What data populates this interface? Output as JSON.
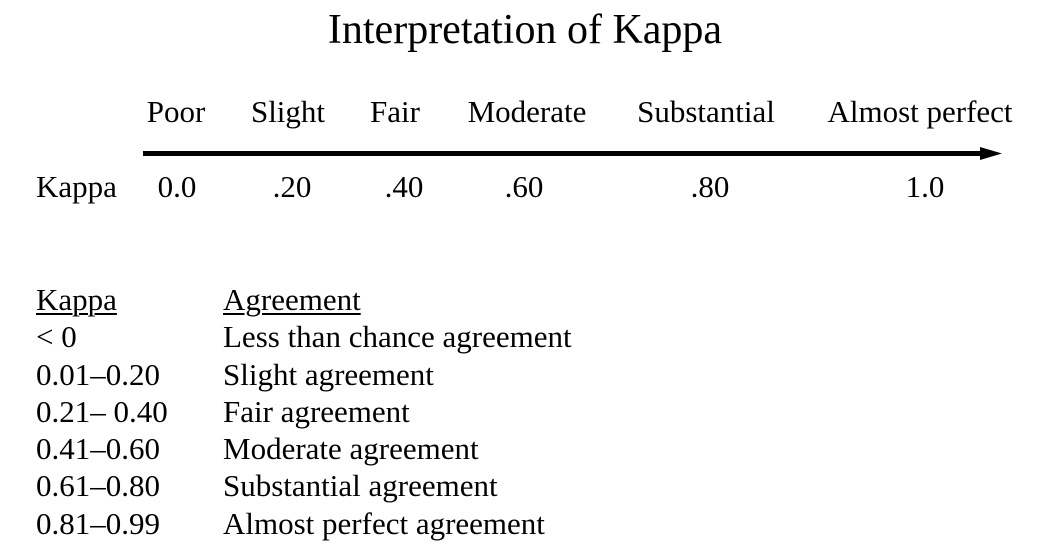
{
  "title": "Interpretation of Kappa",
  "scale": {
    "categories": [
      "Poor",
      "Slight",
      "Fair",
      "Moderate",
      "Substantial",
      "Almost perfect"
    ],
    "row_label": "Kappa",
    "values": [
      "0.0",
      ".20",
      ".40",
      ".60",
      ".80",
      "1.0"
    ]
  },
  "table": {
    "headers": [
      "Kappa",
      "Agreement"
    ],
    "rows": [
      [
        "< 0",
        "Less than chance agreement"
      ],
      [
        "0.01–0.20",
        "Slight agreement"
      ],
      [
        "0.21– 0.40",
        "Fair agreement"
      ],
      [
        "0.41–0.60",
        "Moderate agreement"
      ],
      [
        "0.61–0.80",
        "Substantial agreement"
      ],
      [
        "0.81–0.99",
        "Almost perfect agreement"
      ]
    ]
  }
}
